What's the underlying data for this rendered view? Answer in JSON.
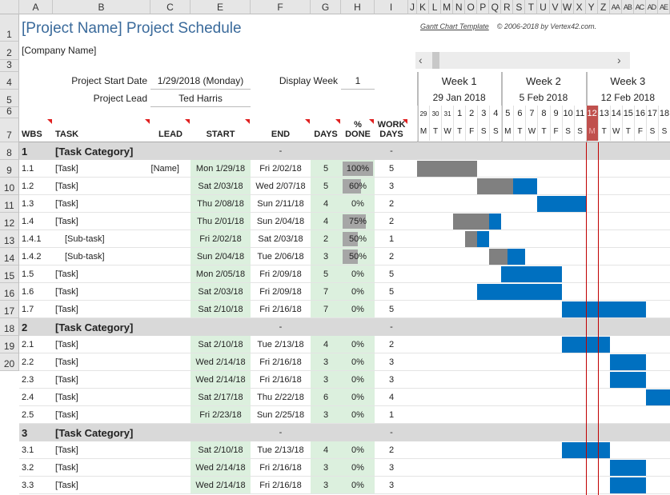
{
  "columns": [
    "A",
    "B",
    "C",
    "E",
    "F",
    "G",
    "H",
    "I",
    "J",
    "K",
    "L",
    "M",
    "N",
    "O",
    "P",
    "Q",
    "R",
    "S",
    "T",
    "U",
    "V",
    "W",
    "X",
    "Y",
    "Z",
    "AA",
    "AB",
    "AC",
    "AD",
    "AE"
  ],
  "title": "[Project Name] Project Schedule",
  "company": "[Company Name]",
  "credit_link": "Gantt Chart Template",
  "credit_text": "© 2006-2018 by Vertex42.com.",
  "project_start_label": "Project Start Date",
  "project_start_value": "1/29/2018 (Monday)",
  "project_lead_label": "Project Lead",
  "project_lead_value": "Ted Harris",
  "display_week_label": "Display Week",
  "display_week_value": "1",
  "headers": {
    "wbs": "WBS",
    "task": "TASK",
    "lead": "LEAD",
    "start": "START",
    "end": "END",
    "days": "DAYS",
    "done": "% DONE",
    "work": "WORK DAYS"
  },
  "weeks": [
    {
      "label": "Week 1",
      "date": "29 Jan 2018"
    },
    {
      "label": "Week 2",
      "date": "5 Feb 2018"
    },
    {
      "label": "Week 3",
      "date": "12 Feb 2018"
    }
  ],
  "days": [
    {
      "n": "29",
      "d": "M"
    },
    {
      "n": "30",
      "d": "T"
    },
    {
      "n": "31",
      "d": "W"
    },
    {
      "n": "1",
      "d": "T"
    },
    {
      "n": "2",
      "d": "F"
    },
    {
      "n": "3",
      "d": "S"
    },
    {
      "n": "4",
      "d": "S"
    },
    {
      "n": "5",
      "d": "M"
    },
    {
      "n": "6",
      "d": "T"
    },
    {
      "n": "7",
      "d": "W"
    },
    {
      "n": "8",
      "d": "T"
    },
    {
      "n": "9",
      "d": "F"
    },
    {
      "n": "10",
      "d": "S"
    },
    {
      "n": "11",
      "d": "S"
    },
    {
      "n": "12",
      "d": "M"
    },
    {
      "n": "13",
      "d": "T"
    },
    {
      "n": "14",
      "d": "W"
    },
    {
      "n": "15",
      "d": "T"
    },
    {
      "n": "16",
      "d": "F"
    },
    {
      "n": "17",
      "d": "S"
    },
    {
      "n": "18",
      "d": "S"
    }
  ],
  "today_index": 14,
  "colors": {
    "title": "#3a6a9b",
    "done": "#808080",
    "remaining": "#0070c0",
    "today": "#c0504d",
    "today_line": "#c00000",
    "category": "#d9d9d9",
    "input": "#dcf0de"
  },
  "rows": [
    {
      "type": "cat",
      "wbs": "1",
      "task": "[Task Category]",
      "end": "-",
      "work": "-"
    },
    {
      "wbs": "1.1",
      "task": "[Task]",
      "lead": "[Name]",
      "start": "Mon 1/29/18",
      "end": "Fri 2/02/18",
      "days": "5",
      "done": "100%",
      "work": "5",
      "offset": 0,
      "pct": 100
    },
    {
      "wbs": "1.2",
      "task": "[Task]",
      "lead": "",
      "start": "Sat 2/03/18",
      "end": "Wed 2/07/18",
      "days": "5",
      "done": "60%",
      "work": "3",
      "offset": 5,
      "pct": 60
    },
    {
      "wbs": "1.3",
      "task": "[Task]",
      "lead": "",
      "start": "Thu 2/08/18",
      "end": "Sun 2/11/18",
      "days": "4",
      "done": "0%",
      "work": "2",
      "offset": 10,
      "pct": 0
    },
    {
      "wbs": "1.4",
      "task": "[Task]",
      "lead": "",
      "start": "Thu 2/01/18",
      "end": "Sun 2/04/18",
      "days": "4",
      "done": "75%",
      "work": "2",
      "offset": 3,
      "pct": 75
    },
    {
      "wbs": "1.4.1",
      "task": "[Sub-task]",
      "sub": true,
      "lead": "",
      "start": "Fri 2/02/18",
      "end": "Sat 2/03/18",
      "days": "2",
      "done": "50%",
      "work": "1",
      "offset": 4,
      "pct": 50
    },
    {
      "wbs": "1.4.2",
      "task": "[Sub-task]",
      "sub": true,
      "lead": "",
      "start": "Sun 2/04/18",
      "end": "Tue 2/06/18",
      "days": "3",
      "done": "50%",
      "work": "2",
      "offset": 6,
      "pct": 50
    },
    {
      "wbs": "1.5",
      "task": "[Task]",
      "lead": "",
      "start": "Mon 2/05/18",
      "end": "Fri 2/09/18",
      "days": "5",
      "done": "0%",
      "work": "5",
      "offset": 7,
      "pct": 0
    },
    {
      "wbs": "1.6",
      "task": "[Task]",
      "lead": "",
      "start": "Sat 2/03/18",
      "end": "Fri 2/09/18",
      "days": "7",
      "done": "0%",
      "work": "5",
      "offset": 5,
      "pct": 0
    },
    {
      "wbs": "1.7",
      "task": "[Task]",
      "lead": "",
      "start": "Sat 2/10/18",
      "end": "Fri 2/16/18",
      "days": "7",
      "done": "0%",
      "work": "5",
      "offset": 12,
      "pct": 0
    },
    {
      "type": "cat",
      "wbs": "2",
      "task": "[Task Category]",
      "end": "-",
      "work": "-"
    },
    {
      "wbs": "2.1",
      "task": "[Task]",
      "lead": "",
      "start": "Sat 2/10/18",
      "end": "Tue 2/13/18",
      "days": "4",
      "done": "0%",
      "work": "2",
      "offset": 12,
      "pct": 0
    },
    {
      "wbs": "2.2",
      "task": "[Task]",
      "lead": "",
      "start": "Wed 2/14/18",
      "end": "Fri 2/16/18",
      "days": "3",
      "done": "0%",
      "work": "3",
      "offset": 16,
      "pct": 0
    },
    {
      "wbs": "2.3",
      "task": "[Task]",
      "lead": "",
      "start": "Wed 2/14/18",
      "end": "Fri 2/16/18",
      "days": "3",
      "done": "0%",
      "work": "3",
      "offset": 16,
      "pct": 0
    },
    {
      "wbs": "2.4",
      "task": "[Task]",
      "lead": "",
      "start": "Sat 2/17/18",
      "end": "Thu 2/22/18",
      "days": "6",
      "done": "0%",
      "work": "4",
      "offset": 19,
      "pct": 0
    },
    {
      "wbs": "2.5",
      "task": "[Task]",
      "lead": "",
      "start": "Fri 2/23/18",
      "end": "Sun 2/25/18",
      "days": "3",
      "done": "0%",
      "work": "1",
      "offset": 25,
      "pct": 0
    },
    {
      "type": "cat",
      "wbs": "3",
      "task": "[Task Category]",
      "end": "-",
      "work": "-"
    },
    {
      "wbs": "3.1",
      "task": "[Task]",
      "lead": "",
      "start": "Sat 2/10/18",
      "end": "Tue 2/13/18",
      "days": "4",
      "done": "0%",
      "work": "2",
      "offset": 12,
      "pct": 0
    },
    {
      "wbs": "3.2",
      "task": "[Task]",
      "lead": "",
      "start": "Wed 2/14/18",
      "end": "Fri 2/16/18",
      "days": "3",
      "done": "0%",
      "work": "3",
      "offset": 16,
      "pct": 0
    },
    {
      "wbs": "3.3",
      "task": "[Task]",
      "lead": "",
      "start": "Wed 2/14/18",
      "end": "Fri 2/16/18",
      "days": "3",
      "done": "0%",
      "work": "3",
      "offset": 16,
      "pct": 0
    }
  ]
}
